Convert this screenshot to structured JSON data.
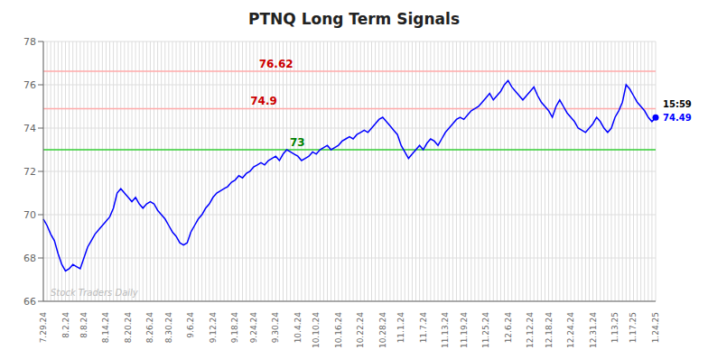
{
  "chart_data": {
    "type": "line",
    "title": "PTNQ Long Term Signals",
    "categories": [
      "7.29.24",
      null,
      null,
      null,
      null,
      null,
      "8.2.24",
      null,
      null,
      null,
      null,
      "8.8.24",
      null,
      null,
      null,
      null,
      null,
      "8.14.24",
      null,
      null,
      null,
      null,
      null,
      "8.20.24",
      null,
      null,
      null,
      null,
      null,
      "8.26.24",
      null,
      null,
      null,
      null,
      "8.30.24",
      null,
      null,
      null,
      null,
      null,
      "9.6.24",
      null,
      null,
      null,
      null,
      null,
      "9.12.24",
      null,
      null,
      null,
      null,
      null,
      "9.18.24",
      null,
      null,
      null,
      null,
      "9.24.24",
      null,
      null,
      null,
      null,
      null,
      "9.30.24",
      null,
      null,
      null,
      null,
      null,
      "10.4.24",
      null,
      null,
      null,
      null,
      "10.10.24",
      null,
      null,
      null,
      null,
      null,
      "10.16.24",
      null,
      null,
      null,
      null,
      null,
      "10.22.24",
      null,
      null,
      null,
      null,
      null,
      "10.28.24",
      null,
      null,
      null,
      null,
      "11.1.24",
      null,
      null,
      null,
      null,
      null,
      "11.7.24",
      null,
      null,
      null,
      null,
      null,
      "11.13.24",
      null,
      null,
      null,
      null,
      "11.19.24",
      null,
      null,
      null,
      null,
      null,
      "11.25.24",
      null,
      null,
      null,
      null,
      null,
      "12.6.24",
      null,
      null,
      null,
      null,
      null,
      "12.12.24",
      null,
      null,
      null,
      null,
      "12.18.24",
      null,
      null,
      null,
      null,
      null,
      "12.24.24",
      null,
      null,
      null,
      null,
      null,
      "12.31.24",
      null,
      null,
      null,
      null,
      null,
      "1.13.25",
      null,
      null,
      null,
      null,
      "1.17.25",
      null,
      null,
      null,
      null,
      null,
      "1.24.25"
    ],
    "values": [
      69.8,
      69.5,
      69.1,
      68.8,
      68.2,
      67.7,
      67.4,
      67.5,
      67.7,
      67.6,
      67.5,
      68.0,
      68.5,
      68.8,
      69.1,
      69.3,
      69.5,
      69.7,
      69.9,
      70.3,
      71.0,
      71.2,
      71.0,
      70.8,
      70.6,
      70.8,
      70.5,
      70.3,
      70.5,
      70.6,
      70.5,
      70.2,
      70.0,
      69.8,
      69.5,
      69.2,
      69.0,
      68.7,
      68.6,
      68.7,
      69.2,
      69.5,
      69.8,
      70.0,
      70.3,
      70.5,
      70.8,
      71.0,
      71.1,
      71.2,
      71.3,
      71.5,
      71.6,
      71.8,
      71.7,
      71.9,
      72.0,
      72.2,
      72.3,
      72.4,
      72.3,
      72.5,
      72.6,
      72.7,
      72.5,
      72.8,
      73.0,
      72.9,
      72.8,
      72.7,
      72.5,
      72.6,
      72.7,
      72.9,
      72.8,
      73.0,
      73.1,
      73.2,
      73.0,
      73.1,
      73.2,
      73.4,
      73.5,
      73.6,
      73.5,
      73.7,
      73.8,
      73.9,
      73.8,
      74.0,
      74.2,
      74.4,
      74.5,
      74.3,
      74.1,
      73.9,
      73.7,
      73.2,
      72.9,
      72.6,
      72.8,
      73.0,
      73.2,
      73.0,
      73.3,
      73.5,
      73.4,
      73.2,
      73.5,
      73.8,
      74.0,
      74.2,
      74.4,
      74.5,
      74.4,
      74.6,
      74.8,
      74.9,
      75.0,
      75.2,
      75.4,
      75.6,
      75.3,
      75.5,
      75.7,
      76.0,
      76.2,
      75.9,
      75.7,
      75.5,
      75.3,
      75.5,
      75.7,
      75.9,
      75.5,
      75.2,
      75.0,
      74.8,
      74.5,
      75.0,
      75.3,
      75.0,
      74.7,
      74.5,
      74.3,
      74.0,
      73.9,
      73.8,
      74.0,
      74.2,
      74.5,
      74.3,
      74.0,
      73.8,
      74.0,
      74.5,
      74.8,
      75.2,
      76.0,
      75.8,
      75.5,
      75.2,
      75.0,
      74.8,
      74.5,
      74.3,
      74.49
    ],
    "color": "blue",
    "ylim": [
      66,
      78
    ],
    "yticks": [
      66,
      68,
      70,
      72,
      74,
      76,
      78
    ],
    "grid": true,
    "reference_lines": [
      {
        "y": 73.0,
        "label": "73",
        "color": "#33cc33",
        "label_color": "green"
      },
      {
        "y": 74.9,
        "label": "74.9",
        "color": "#ffaaaa",
        "label_color": "#cc0000"
      },
      {
        "y": 76.62,
        "label": "76.62",
        "color": "#ffaaaa",
        "label_color": "#cc0000"
      }
    ],
    "last_point_labels": [
      {
        "text": "15:59",
        "color": "black"
      },
      {
        "text": "74.49",
        "color": "blue"
      }
    ],
    "watermark": {
      "text": "Stock Traders Daily",
      "color": "#bbbbbb"
    }
  }
}
